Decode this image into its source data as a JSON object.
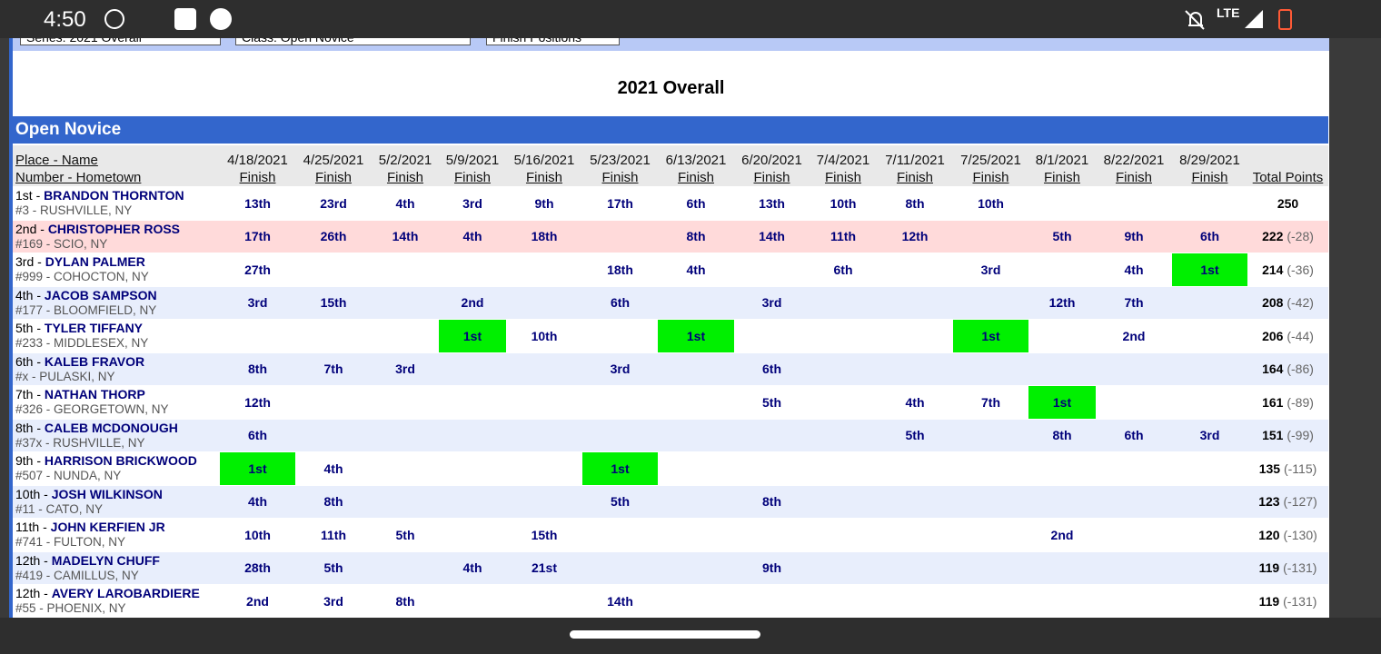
{
  "status_bar": {
    "time": "4:50",
    "network": "LTE"
  },
  "filters": [
    "Series: 2021 Overall",
    "Class: Open Novice",
    "Finish Positions"
  ],
  "title": "2021 Overall",
  "section": "Open Novice",
  "table": {
    "header": {
      "name_line1": "Place - Name",
      "name_line2": "Number - Hometown",
      "total": "Total Points",
      "columns": [
        {
          "date": "4/18/2021",
          "label": "Finish"
        },
        {
          "date": "4/25/2021",
          "label": "Finish"
        },
        {
          "date": "5/2/2021",
          "label": "Finish"
        },
        {
          "date": "5/9/2021",
          "label": "Finish"
        },
        {
          "date": "5/16/2021",
          "label": "Finish"
        },
        {
          "date": "5/23/2021",
          "label": "Finish"
        },
        {
          "date": "6/13/2021",
          "label": "Finish"
        },
        {
          "date": "6/20/2021",
          "label": "Finish"
        },
        {
          "date": "7/4/2021",
          "label": "Finish"
        },
        {
          "date": "7/11/2021",
          "label": "Finish"
        },
        {
          "date": "7/25/2021",
          "label": "Finish"
        },
        {
          "date": "8/1/2021",
          "label": "Finish"
        },
        {
          "date": "8/22/2021",
          "label": "Finish"
        },
        {
          "date": "8/29/2021",
          "label": "Finish"
        }
      ]
    },
    "rows": [
      {
        "place": "1st -",
        "name": "BRANDON THORNTON",
        "hometown": "#3 - RUSHVILLE, NY",
        "finishes": [
          "13th",
          "23rd",
          "4th",
          "3rd",
          "9th",
          "17th",
          "6th",
          "13th",
          "10th",
          "8th",
          "10th",
          null,
          null,
          null
        ],
        "total": 250,
        "diff": null
      },
      {
        "place": "2nd -",
        "name": "CHRISTOPHER ROSS",
        "hometown": "#169 - SCIO, NY",
        "finishes": [
          "17th",
          "26th",
          "14th",
          "4th",
          "18th",
          null,
          "8th",
          "14th",
          "11th",
          "12th",
          null,
          "5th",
          "9th",
          "6th"
        ],
        "total": 222,
        "diff": "(-28)"
      },
      {
        "place": "3rd -",
        "name": "DYLAN PALMER",
        "hometown": "#999 - COHOCTON, NY",
        "finishes": [
          "27th",
          null,
          null,
          null,
          null,
          "18th",
          "4th",
          null,
          "6th",
          null,
          "3rd",
          null,
          "4th",
          "1st"
        ],
        "total": 214,
        "diff": "(-36)"
      },
      {
        "place": "4th -",
        "name": "JACOB SAMPSON",
        "hometown": "#177 - BLOOMFIELD, NY",
        "finishes": [
          "3rd",
          "15th",
          null,
          "2nd",
          null,
          "6th",
          null,
          "3rd",
          null,
          null,
          null,
          "12th",
          "7th",
          null
        ],
        "total": 208,
        "diff": "(-42)"
      },
      {
        "place": "5th -",
        "name": "TYLER TIFFANY",
        "hometown": "#233 - MIDDLESEX, NY",
        "finishes": [
          null,
          null,
          null,
          "1st",
          "10th",
          null,
          "1st",
          null,
          null,
          null,
          "1st",
          null,
          "2nd",
          null
        ],
        "total": 206,
        "diff": "(-44)"
      },
      {
        "place": "6th -",
        "name": "KALEB FRAVOR",
        "hometown": "#x - PULASKI, NY",
        "finishes": [
          "8th",
          "7th",
          "3rd",
          null,
          null,
          "3rd",
          null,
          "6th",
          null,
          null,
          null,
          null,
          null,
          null
        ],
        "total": 164,
        "diff": "(-86)"
      },
      {
        "place": "7th -",
        "name": "NATHAN THORP",
        "hometown": "#326 - GEORGETOWN, NY",
        "finishes": [
          "12th",
          null,
          null,
          null,
          null,
          null,
          null,
          "5th",
          null,
          "4th",
          "7th",
          "1st",
          null,
          null
        ],
        "total": 161,
        "diff": "(-89)"
      },
      {
        "place": "8th -",
        "name": "CALEB MCDONOUGH",
        "hometown": "#37x - RUSHVILLE, NY",
        "finishes": [
          "6th",
          null,
          null,
          null,
          null,
          null,
          null,
          null,
          null,
          "5th",
          null,
          "8th",
          "6th",
          "3rd"
        ],
        "total": 151,
        "diff": "(-99)"
      },
      {
        "place": "9th -",
        "name": "HARRISON BRICKWOOD",
        "hometown": "#507 - NUNDA, NY",
        "finishes": [
          "1st",
          "4th",
          null,
          null,
          null,
          "1st",
          null,
          null,
          null,
          null,
          null,
          null,
          null,
          null
        ],
        "total": 135,
        "diff": "(-115)"
      },
      {
        "place": "10th -",
        "name": "JOSH WILKINSON",
        "hometown": "#11 - CATO, NY",
        "finishes": [
          "4th",
          "8th",
          null,
          null,
          null,
          "5th",
          null,
          "8th",
          null,
          null,
          null,
          null,
          null,
          null
        ],
        "total": 123,
        "diff": "(-127)"
      },
      {
        "place": "11th -",
        "name": "JOHN KERFIEN JR",
        "hometown": "#741 - FULTON, NY",
        "finishes": [
          "10th",
          "11th",
          "5th",
          null,
          "15th",
          null,
          null,
          null,
          null,
          null,
          null,
          "2nd",
          null,
          null
        ],
        "total": 120,
        "diff": "(-130)"
      },
      {
        "place": "12th -",
        "name": "MADELYN CHUFF",
        "hometown": "#419 - CAMILLUS, NY",
        "finishes": [
          "28th",
          "5th",
          null,
          "4th",
          "21st",
          null,
          null,
          "9th",
          null,
          null,
          null,
          null,
          null,
          null
        ],
        "total": 119,
        "diff": "(-131)"
      },
      {
        "place": "12th -",
        "name": "AVERY LAROBARDIERE",
        "hometown": "#55 - PHOENIX, NY",
        "finishes": [
          "2nd",
          "3rd",
          "8th",
          null,
          null,
          "14th",
          null,
          null,
          null,
          null,
          null,
          null,
          null,
          null
        ],
        "total": 119,
        "diff": "(-131)"
      }
    ]
  }
}
